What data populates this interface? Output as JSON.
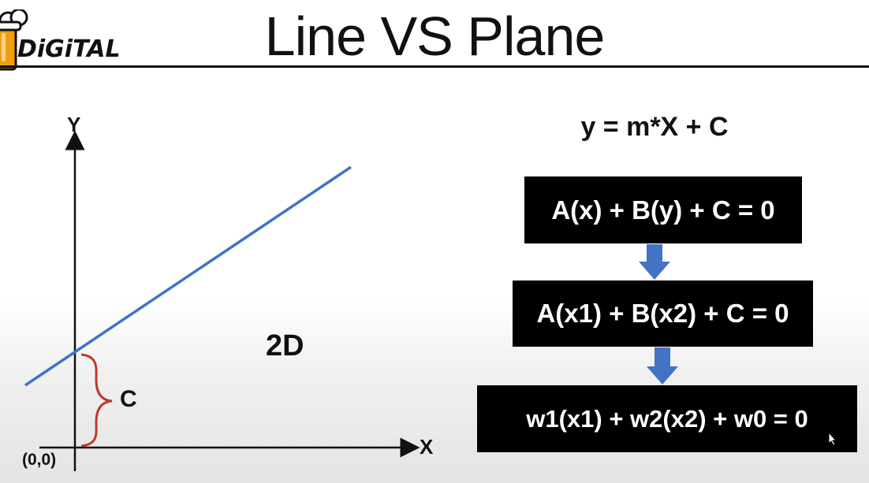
{
  "header": {
    "title": "Line VS Plane",
    "logo_text": "DiGiTAL"
  },
  "graph": {
    "y_axis_label": "Y",
    "x_axis_label": "X",
    "origin_label": "(0,0)",
    "intercept_label": "C",
    "dimension_label": "2D",
    "line_color": "#4472c4",
    "brace_color": "#c0392b"
  },
  "equations": {
    "line_equation": "y = m*X + C",
    "step1": "A(x) + B(y) + C = 0",
    "step2": "A(x1) + B(x2) + C = 0",
    "step3": "w1(x1) + w2(x2) + w0 = 0",
    "arrow_color": "#4472c4"
  }
}
